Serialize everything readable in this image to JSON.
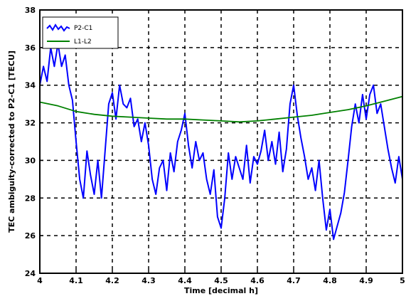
{
  "chart_data": {
    "type": "line",
    "title": "",
    "xlabel": "Time [decimal h]",
    "ylabel": "TEC ambiguity-corrected to P2-C1 [TECU]",
    "xlim": [
      4,
      5
    ],
    "ylim": [
      24,
      38
    ],
    "xticks": [
      "4",
      "4.1",
      "4.2",
      "4.3",
      "4.4",
      "4.5",
      "4.6",
      "4.7",
      "4.8",
      "4.9",
      "5"
    ],
    "yticks": [
      "24",
      "26",
      "28",
      "30",
      "32",
      "34",
      "36",
      "38"
    ],
    "grid": true,
    "legend_position": "top-left",
    "series": [
      {
        "name": "P2-C1",
        "color": "#0000ff",
        "x": [
          4.0,
          4.01,
          4.02,
          4.03,
          4.04,
          4.05,
          4.06,
          4.07,
          4.08,
          4.09,
          4.1,
          4.11,
          4.12,
          4.13,
          4.14,
          4.15,
          4.16,
          4.17,
          4.18,
          4.19,
          4.2,
          4.21,
          4.22,
          4.23,
          4.24,
          4.25,
          4.26,
          4.27,
          4.28,
          4.29,
          4.3,
          4.31,
          4.32,
          4.33,
          4.34,
          4.35,
          4.36,
          4.37,
          4.38,
          4.39,
          4.4,
          4.41,
          4.42,
          4.43,
          4.44,
          4.45,
          4.46,
          4.47,
          4.48,
          4.49,
          4.5,
          4.51,
          4.52,
          4.53,
          4.54,
          4.55,
          4.56,
          4.57,
          4.58,
          4.59,
          4.6,
          4.61,
          4.62,
          4.63,
          4.64,
          4.65,
          4.66,
          4.67,
          4.68,
          4.69,
          4.7,
          4.71,
          4.72,
          4.73,
          4.74,
          4.75,
          4.76,
          4.77,
          4.78,
          4.79,
          4.8,
          4.81,
          4.82,
          4.83,
          4.84,
          4.85,
          4.86,
          4.87,
          4.88,
          4.89,
          4.9,
          4.91,
          4.92,
          4.93,
          4.94,
          4.95,
          4.96,
          4.97,
          4.98,
          4.99,
          5.0
        ],
        "y": [
          34.0,
          35.0,
          34.2,
          36.0,
          35.0,
          36.2,
          35.0,
          35.6,
          34.0,
          33.2,
          31.0,
          29.0,
          28.0,
          30.5,
          29.2,
          28.2,
          30.0,
          28.0,
          30.5,
          33.0,
          33.6,
          32.2,
          34.0,
          33.0,
          32.8,
          33.3,
          31.8,
          32.2,
          31.0,
          32.0,
          30.8,
          29.0,
          28.2,
          29.6,
          30.0,
          28.4,
          30.4,
          29.4,
          31.0,
          31.6,
          32.5,
          30.8,
          29.6,
          31.0,
          30.0,
          30.4,
          29.0,
          28.2,
          29.5,
          27.0,
          26.4,
          28.0,
          30.4,
          29.0,
          30.2,
          29.6,
          29.0,
          30.8,
          28.8,
          30.2,
          29.8,
          30.5,
          31.6,
          30.0,
          31.0,
          29.8,
          31.5,
          29.4,
          30.6,
          33.0,
          34.0,
          32.4,
          31.2,
          30.2,
          29.0,
          29.6,
          28.4,
          30.0,
          28.0,
          26.3,
          27.4,
          25.8,
          26.5,
          27.2,
          28.3,
          30.0,
          31.8,
          33.0,
          32.0,
          33.5,
          32.2,
          33.5,
          34.0,
          32.5,
          33.0,
          31.8,
          30.6,
          29.6,
          28.8,
          30.2,
          29.0
        ]
      },
      {
        "name": "L1-L2",
        "color": "#008000",
        "x": [
          4.0,
          4.05,
          4.1,
          4.15,
          4.2,
          4.25,
          4.3,
          4.35,
          4.4,
          4.45,
          4.5,
          4.55,
          4.6,
          4.65,
          4.7,
          4.75,
          4.8,
          4.85,
          4.9,
          4.95,
          5.0
        ],
        "y": [
          33.1,
          32.9,
          32.6,
          32.45,
          32.35,
          32.3,
          32.25,
          32.2,
          32.2,
          32.15,
          32.1,
          32.05,
          32.1,
          32.2,
          32.3,
          32.4,
          32.55,
          32.7,
          32.9,
          33.15,
          33.4
        ]
      }
    ]
  }
}
